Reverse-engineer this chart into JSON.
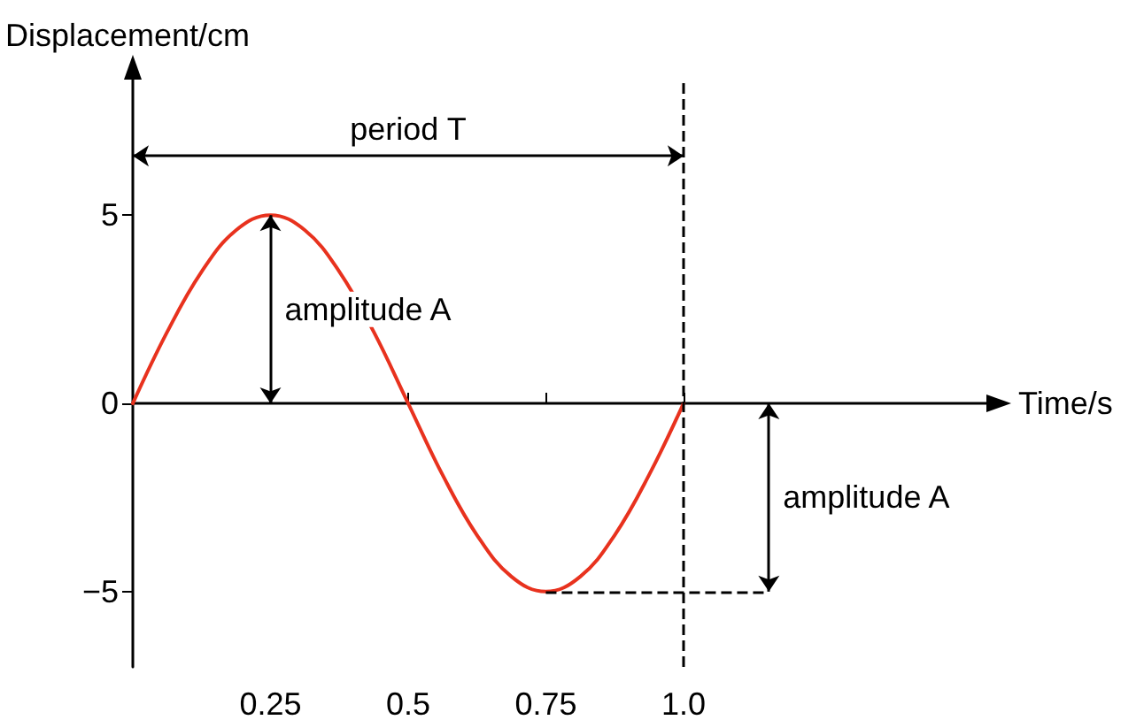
{
  "chart_data": {
    "type": "line",
    "xlabel": "Time/s",
    "ylabel": "Displacement/cm",
    "x": [
      0,
      0.0625,
      0.125,
      0.1875,
      0.25,
      0.3125,
      0.375,
      0.4375,
      0.5,
      0.5625,
      0.625,
      0.6875,
      0.75,
      0.8125,
      0.875,
      0.9375,
      1.0
    ],
    "series": [
      {
        "color": "#e8321e",
        "values": [
          0,
          1.9,
          3.5,
          4.6,
          5,
          4.6,
          3.5,
          1.9,
          0,
          -1.9,
          -3.5,
          -4.6,
          -5,
          -4.6,
          -3.5,
          -1.9,
          0
        ]
      }
    ],
    "xlim": [
      0,
      1.55
    ],
    "ylim": [
      -7,
      8.6
    ],
    "xticks": [
      0.25,
      0.5,
      0.75,
      {
        "value": 1,
        "label": "1.0"
      }
    ],
    "yticks": [
      {
        "value": -5,
        "label": "−5"
      },
      0,
      5
    ],
    "ref_lines": [
      {
        "axis": "x",
        "value": 1,
        "line_style": "dashed",
        "color": "#000000"
      }
    ],
    "annotations": [
      "period T",
      "amplitude A",
      "amplitude A"
    ],
    "grid": false,
    "marker": "none",
    "line_style": "solid"
  }
}
